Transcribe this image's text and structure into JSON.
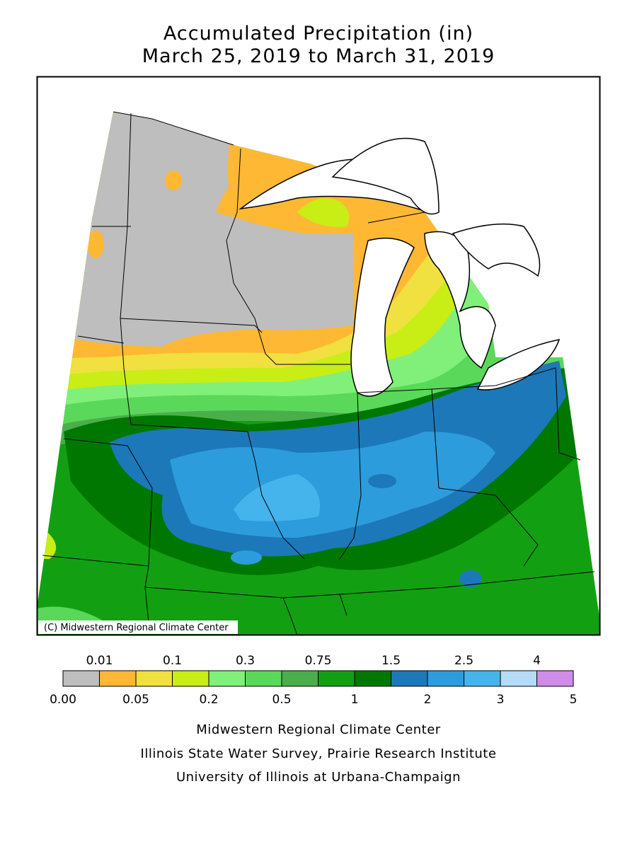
{
  "title": [
    "Accumulated Precipitation (in)",
    "March 25, 2019 to March 31, 2019"
  ],
  "map": {
    "copyright": "(C) Midwestern Regional Climate Center"
  },
  "legend": {
    "bounds": [
      {
        "value": 0,
        "label": "0.00"
      },
      0.01,
      0.05,
      0.1,
      0.2,
      0.3,
      0.5,
      0.75,
      1,
      1.5,
      2,
      2.5,
      3,
      4,
      5
    ],
    "colors": [
      "#bebebe",
      "#ffb833",
      "#f0e040",
      "#c8ee16",
      "#80f07a",
      "#5ad85a",
      "#4aaf4a",
      "#12a012",
      "#007800",
      "#1c78b8",
      "#2c9cdc",
      "#46b4ec",
      "#b4dcf8",
      "#d08ce8"
    ]
  },
  "footer": [
    "Midwestern Regional Climate Center",
    "Illinois State Water Survey, Prairie Research Institute",
    "University of Illinois at Urbana-Champaign"
  ]
}
